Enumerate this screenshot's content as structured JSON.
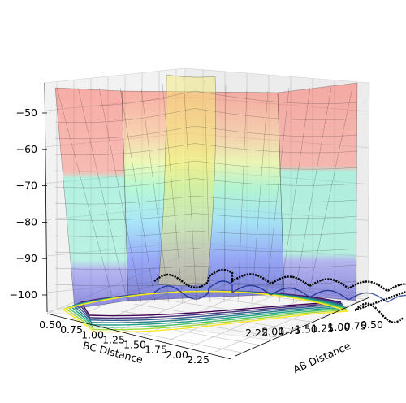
{
  "chart_data": {
    "type": "surface3d",
    "title": "",
    "xlabel": "AB Distance",
    "ylabel": "BC Distance",
    "zlabel": "",
    "x_ticks": [
      "0.50",
      "0.75",
      "1.00",
      "1.25",
      "1.50",
      "1.75",
      "2.00",
      "2.25"
    ],
    "y_ticks": [
      "0.50",
      "0.75",
      "1.00",
      "1.25",
      "1.50",
      "1.75",
      "2.00",
      "2.25"
    ],
    "z_ticks": [
      "-50",
      "-60",
      "-70",
      "-80",
      "-90",
      "-100"
    ],
    "x_range": [
      0.5,
      2.4
    ],
    "y_range": [
      0.5,
      2.4
    ],
    "z_range": [
      -104,
      -43
    ],
    "colormap": "jet",
    "surface_alpha": 0.4,
    "contour_colormap": "viridis",
    "trajectory_color": "#000000",
    "grid": true
  }
}
